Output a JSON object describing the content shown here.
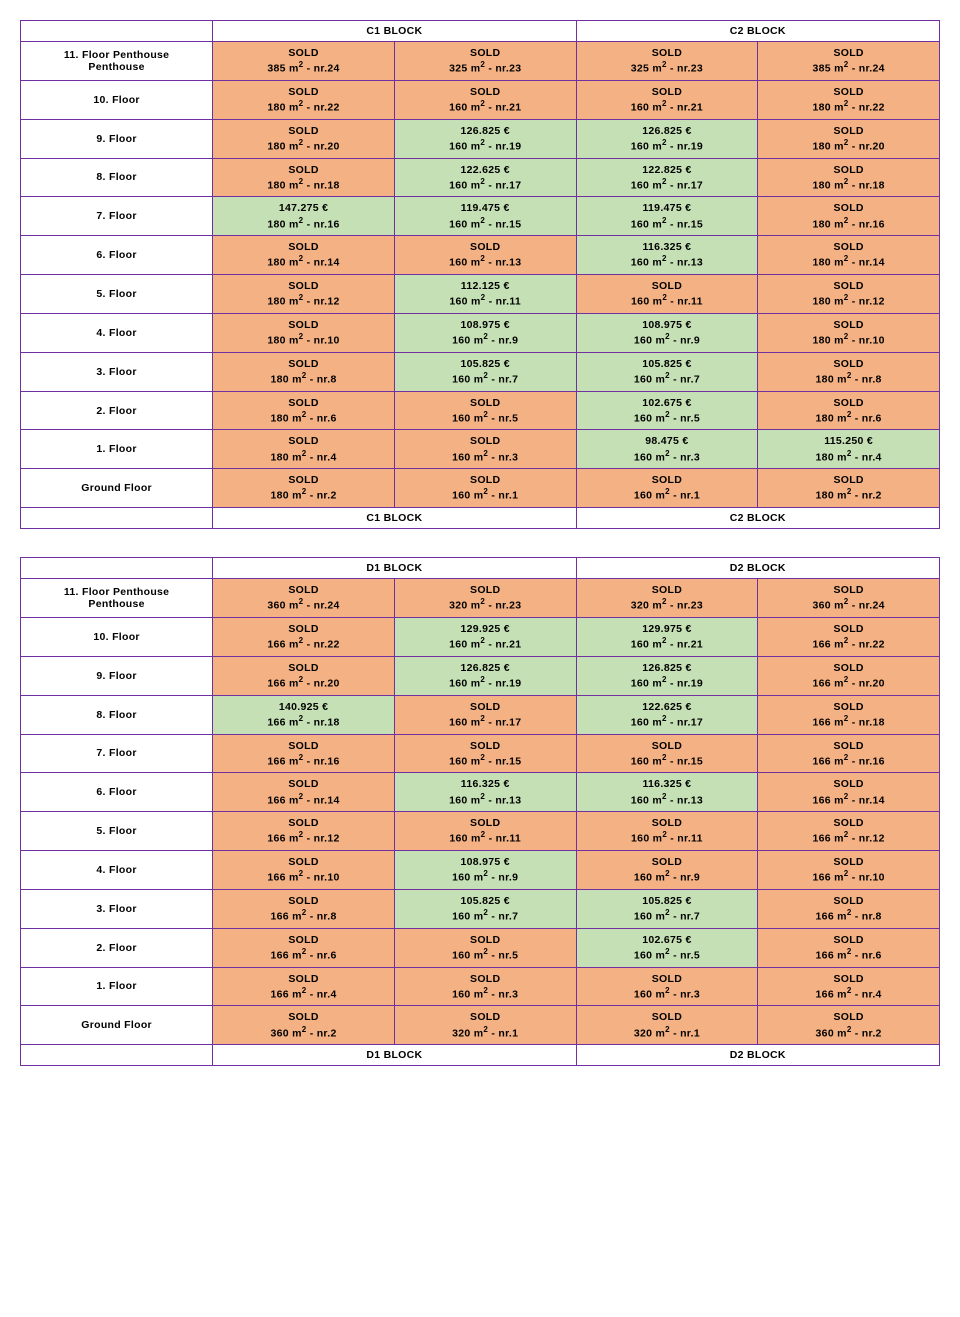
{
  "tables": [
    {
      "blocks": [
        "C1 BLOCK",
        "C2 BLOCK"
      ],
      "rows": [
        {
          "label": "11. Floor\nPenthouse",
          "cells": [
            {
              "s": "sold",
              "t": "SOLD",
              "a": "385",
              "n": "24"
            },
            {
              "s": "sold",
              "t": "SOLD",
              "a": "325",
              "n": "23"
            },
            {
              "s": "sold",
              "t": "SOLD",
              "a": "325",
              "n": "23"
            },
            {
              "s": "sold",
              "t": "SOLD",
              "a": "385",
              "n": "24"
            }
          ]
        },
        {
          "label": "10. Floor",
          "cells": [
            {
              "s": "sold",
              "t": "SOLD",
              "a": "180",
              "n": "22"
            },
            {
              "s": "sold",
              "t": "SOLD",
              "a": "160",
              "n": "21"
            },
            {
              "s": "sold",
              "t": "SOLD",
              "a": "160",
              "n": "21"
            },
            {
              "s": "sold",
              "t": "SOLD",
              "a": "180",
              "n": "22"
            }
          ]
        },
        {
          "label": "9. Floor",
          "cells": [
            {
              "s": "sold",
              "t": "SOLD",
              "a": "180",
              "n": "20"
            },
            {
              "s": "avail",
              "t": "126.825 €",
              "a": "160",
              "n": "19"
            },
            {
              "s": "avail",
              "t": "126.825 €",
              "a": "160",
              "n": "19"
            },
            {
              "s": "sold",
              "t": "SOLD",
              "a": "180",
              "n": "20"
            }
          ]
        },
        {
          "label": "8. Floor",
          "cells": [
            {
              "s": "sold",
              "t": "SOLD",
              "a": "180",
              "n": "18"
            },
            {
              "s": "avail",
              "t": "122.625 €",
              "a": "160",
              "n": "17"
            },
            {
              "s": "avail",
              "t": "122.825 €",
              "a": "160",
              "n": "17"
            },
            {
              "s": "sold",
              "t": "SOLD",
              "a": "180",
              "n": "18"
            }
          ]
        },
        {
          "label": "7. Floor",
          "cells": [
            {
              "s": "avail",
              "t": "147.275 €",
              "a": "180",
              "n": "16"
            },
            {
              "s": "avail",
              "t": "119.475 €",
              "a": "160",
              "n": "15"
            },
            {
              "s": "avail",
              "t": "119.475 €",
              "a": "160",
              "n": "15"
            },
            {
              "s": "sold",
              "t": "SOLD",
              "a": "180",
              "n": "16"
            }
          ]
        },
        {
          "label": "6. Floor",
          "cells": [
            {
              "s": "sold",
              "t": "SOLD",
              "a": "180",
              "n": "14"
            },
            {
              "s": "sold",
              "t": "SOLD",
              "a": "160",
              "n": "13"
            },
            {
              "s": "avail",
              "t": "116.325 €",
              "a": "160",
              "n": "13"
            },
            {
              "s": "sold",
              "t": "SOLD",
              "a": "180",
              "n": "14"
            }
          ]
        },
        {
          "label": "5. Floor",
          "cells": [
            {
              "s": "sold",
              "t": "SOLD",
              "a": "180",
              "n": "12"
            },
            {
              "s": "avail",
              "t": "112.125 €",
              "a": "160",
              "n": "11"
            },
            {
              "s": "sold",
              "t": "SOLD",
              "a": "160",
              "n": "11"
            },
            {
              "s": "sold",
              "t": "SOLD",
              "a": "180",
              "n": "12"
            }
          ]
        },
        {
          "label": "4. Floor",
          "cells": [
            {
              "s": "sold",
              "t": "SOLD",
              "a": "180",
              "n": "10"
            },
            {
              "s": "avail",
              "t": "108.975 €",
              "a": "160",
              "n": "9"
            },
            {
              "s": "avail",
              "t": "108.975 €",
              "a": "160",
              "n": "9"
            },
            {
              "s": "sold",
              "t": "SOLD",
              "a": "180",
              "n": "10"
            }
          ]
        },
        {
          "label": "3. Floor",
          "cells": [
            {
              "s": "sold",
              "t": "SOLD",
              "a": "180",
              "n": "8"
            },
            {
              "s": "avail",
              "t": "105.825 €",
              "a": "160",
              "n": "7"
            },
            {
              "s": "avail",
              "t": "105.825 €",
              "a": "160",
              "n": "7"
            },
            {
              "s": "sold",
              "t": "SOLD",
              "a": "180",
              "n": "8"
            }
          ]
        },
        {
          "label": "2. Floor",
          "cells": [
            {
              "s": "sold",
              "t": "SOLD",
              "a": "180",
              "n": "6"
            },
            {
              "s": "sold",
              "t": "SOLD",
              "a": "160",
              "n": "5"
            },
            {
              "s": "avail",
              "t": "102.675 €",
              "a": "160",
              "n": "5"
            },
            {
              "s": "sold",
              "t": "SOLD",
              "a": "180",
              "n": "6"
            }
          ]
        },
        {
          "label": "1. Floor",
          "cells": [
            {
              "s": "sold",
              "t": "SOLD",
              "a": "180",
              "n": "4"
            },
            {
              "s": "sold",
              "t": "SOLD",
              "a": "160",
              "n": "3"
            },
            {
              "s": "avail",
              "t": "98.475 €",
              "a": "160",
              "n": "3"
            },
            {
              "s": "avail",
              "t": "115.250 €",
              "a": "180",
              "n": "4"
            }
          ]
        },
        {
          "label": "Ground Floor",
          "cells": [
            {
              "s": "sold",
              "t": "SOLD",
              "a": "180",
              "n": "2"
            },
            {
              "s": "sold",
              "t": "SOLD",
              "a": "160",
              "n": "1"
            },
            {
              "s": "sold",
              "t": "SOLD",
              "a": "160",
              "n": "1"
            },
            {
              "s": "sold",
              "t": "SOLD",
              "a": "180",
              "n": "2"
            }
          ]
        }
      ]
    },
    {
      "blocks": [
        "D1 BLOCK",
        "D2 BLOCK"
      ],
      "rows": [
        {
          "label": "11. Floor\nPenthouse",
          "cells": [
            {
              "s": "sold",
              "t": "SOLD",
              "a": "360",
              "n": "24"
            },
            {
              "s": "sold",
              "t": "SOLD",
              "a": "320",
              "n": "23"
            },
            {
              "s": "sold",
              "t": "SOLD",
              "a": "320",
              "n": "23"
            },
            {
              "s": "sold",
              "t": "SOLD",
              "a": "360",
              "n": "24"
            }
          ]
        },
        {
          "label": "10. Floor",
          "cells": [
            {
              "s": "sold",
              "t": "SOLD",
              "a": "166",
              "n": "22"
            },
            {
              "s": "avail",
              "t": "129.925 €",
              "a": "160",
              "n": "21"
            },
            {
              "s": "avail",
              "t": "129.975 €",
              "a": "160",
              "n": "21"
            },
            {
              "s": "sold",
              "t": "SOLD",
              "a": "166",
              "n": "22"
            }
          ]
        },
        {
          "label": "9. Floor",
          "cells": [
            {
              "s": "sold",
              "t": "SOLD",
              "a": "166",
              "n": "20"
            },
            {
              "s": "avail",
              "t": "126.825 €",
              "a": "160",
              "n": "19"
            },
            {
              "s": "avail",
              "t": "126.825 €",
              "a": "160",
              "n": "19"
            },
            {
              "s": "sold",
              "t": "SOLD",
              "a": "166",
              "n": "20"
            }
          ]
        },
        {
          "label": "8. Floor",
          "cells": [
            {
              "s": "avail",
              "t": "140.925 €",
              "a": "166",
              "n": "18"
            },
            {
              "s": "sold",
              "t": "SOLD",
              "a": "160",
              "n": "17"
            },
            {
              "s": "avail",
              "t": "122.625 €",
              "a": "160",
              "n": "17"
            },
            {
              "s": "sold",
              "t": "SOLD",
              "a": "166",
              "n": "18"
            }
          ]
        },
        {
          "label": "7. Floor",
          "cells": [
            {
              "s": "sold",
              "t": "SOLD",
              "a": "166",
              "n": "16"
            },
            {
              "s": "sold",
              "t": "SOLD",
              "a": "160",
              "n": "15"
            },
            {
              "s": "sold",
              "t": "SOLD",
              "a": "160",
              "n": "15"
            },
            {
              "s": "sold",
              "t": "SOLD",
              "a": "166",
              "n": "16"
            }
          ]
        },
        {
          "label": "6. Floor",
          "cells": [
            {
              "s": "sold",
              "t": "SOLD",
              "a": "166",
              "n": "14"
            },
            {
              "s": "avail",
              "t": "116.325 €",
              "a": "160",
              "n": "13"
            },
            {
              "s": "avail",
              "t": "116.325 €",
              "a": "160",
              "n": "13"
            },
            {
              "s": "sold",
              "t": "SOLD",
              "a": "166",
              "n": "14"
            }
          ]
        },
        {
          "label": "5. Floor",
          "cells": [
            {
              "s": "sold",
              "t": "SOLD",
              "a": "166",
              "n": "12"
            },
            {
              "s": "sold",
              "t": "SOLD",
              "a": "160",
              "n": "11"
            },
            {
              "s": "sold",
              "t": "SOLD",
              "a": "160",
              "n": "11"
            },
            {
              "s": "sold",
              "t": "SOLD",
              "a": "166",
              "n": "12"
            }
          ]
        },
        {
          "label": "4. Floor",
          "cells": [
            {
              "s": "sold",
              "t": "SOLD",
              "a": "166",
              "n": "10"
            },
            {
              "s": "avail",
              "t": "108.975 €",
              "a": "160",
              "n": "9"
            },
            {
              "s": "sold",
              "t": "SOLD",
              "a": "160",
              "n": "9"
            },
            {
              "s": "sold",
              "t": "SOLD",
              "a": "166",
              "n": "10"
            }
          ]
        },
        {
          "label": "3. Floor",
          "cells": [
            {
              "s": "sold",
              "t": "SOLD",
              "a": "166",
              "n": "8"
            },
            {
              "s": "avail",
              "t": "105.825 €",
              "a": "160",
              "n": "7"
            },
            {
              "s": "avail",
              "t": "105.825 €",
              "a": "160",
              "n": "7"
            },
            {
              "s": "sold",
              "t": "SOLD",
              "a": "166",
              "n": "8"
            }
          ]
        },
        {
          "label": "2. Floor",
          "cells": [
            {
              "s": "sold",
              "t": "SOLD",
              "a": "166",
              "n": "6"
            },
            {
              "s": "sold",
              "t": "SOLD",
              "a": "160",
              "n": "5"
            },
            {
              "s": "avail",
              "t": "102.675 €",
              "a": "160",
              "n": "5"
            },
            {
              "s": "sold",
              "t": "SOLD",
              "a": "166",
              "n": "6"
            }
          ]
        },
        {
          "label": "1. Floor",
          "cells": [
            {
              "s": "sold",
              "t": "SOLD",
              "a": "166",
              "n": "4"
            },
            {
              "s": "sold",
              "t": "SOLD",
              "a": "160",
              "n": "3"
            },
            {
              "s": "sold",
              "t": "SOLD",
              "a": "160",
              "n": "3"
            },
            {
              "s": "sold",
              "t": "SOLD",
              "a": "166",
              "n": "4"
            }
          ]
        },
        {
          "label": "Ground Floor",
          "cells": [
            {
              "s": "sold",
              "t": "SOLD",
              "a": "360",
              "n": "2"
            },
            {
              "s": "sold",
              "t": "SOLD",
              "a": "320",
              "n": "1"
            },
            {
              "s": "sold",
              "t": "SOLD",
              "a": "320",
              "n": "1"
            },
            {
              "s": "sold",
              "t": "SOLD",
              "a": "360",
              "n": "2"
            }
          ]
        }
      ]
    }
  ],
  "colors": {
    "sold_bg": "#f4b183",
    "avail_bg": "#c5e0b4",
    "border": "#7030a0"
  }
}
